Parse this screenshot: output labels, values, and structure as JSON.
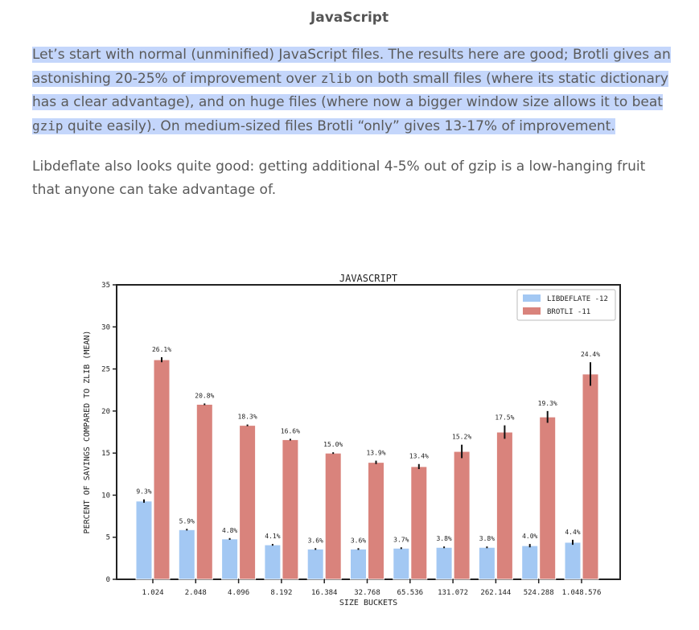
{
  "article": {
    "heading": "JavaScript",
    "paragraph1": {
      "part1": "Let’s start with normal (unminified) JavaScript files. The results here are good; Brotli gives an astonishing 20-25% of improvement over ",
      "code1": "zlib",
      "part2": " on both small files (where its static dictionary has a clear advantage), and on huge files (where now a bigger window size allows it to beat ",
      "code2": "gzip",
      "part3": " quite easily). On medium-sized files Brotli “only” gives 13-17% of improvement."
    },
    "paragraph2": "Libdeflate also looks quite good: getting additional 4-5% out of gzip is a low-hanging fruit that anyone can take advantage of."
  },
  "chart_data": {
    "type": "bar",
    "title": "JAVASCRIPT",
    "xlabel": "SIZE BUCKETS",
    "ylabel": "PERCENT OF SAVINGS COMPARED TO ZLIB (MEAN)",
    "ylim": [
      0,
      35
    ],
    "yticks": [
      "0",
      "5",
      "10",
      "15",
      "20",
      "25",
      "30",
      "35"
    ],
    "categories": [
      "1.024",
      "2.048",
      "4.096",
      "8.192",
      "16.384",
      "32.768",
      "65.536",
      "131.072",
      "262.144",
      "524.288",
      "1.048.576"
    ],
    "legend_position": "top-right",
    "series": [
      {
        "name": "LIBDEFLATE -12",
        "color": "#a3c8f3",
        "values": [
          9.3,
          5.9,
          4.8,
          4.1,
          3.6,
          3.6,
          3.7,
          3.8,
          3.8,
          4.0,
          4.4
        ],
        "labels": [
          "9.3%",
          "5.9%",
          "4.8%",
          "4.1%",
          "3.6%",
          "3.6%",
          "3.7%",
          "3.8%",
          "3.8%",
          "4.0%",
          "4.4%"
        ],
        "errors": [
          0.2,
          0.1,
          0.1,
          0.1,
          0.1,
          0.1,
          0.1,
          0.1,
          0.1,
          0.2,
          0.3
        ]
      },
      {
        "name": "BROTLI -11",
        "color": "#d9837c",
        "values": [
          26.1,
          20.8,
          18.3,
          16.6,
          15.0,
          13.9,
          13.4,
          15.2,
          17.5,
          19.3,
          24.4
        ],
        "labels": [
          "26.1%",
          "20.8%",
          "18.3%",
          "16.6%",
          "15.0%",
          "13.9%",
          "13.4%",
          "15.2%",
          "17.5%",
          "19.3%",
          "24.4%"
        ],
        "errors": [
          0.3,
          0.1,
          0.1,
          0.1,
          0.1,
          0.2,
          0.3,
          0.8,
          0.8,
          0.7,
          1.4
        ]
      }
    ]
  }
}
